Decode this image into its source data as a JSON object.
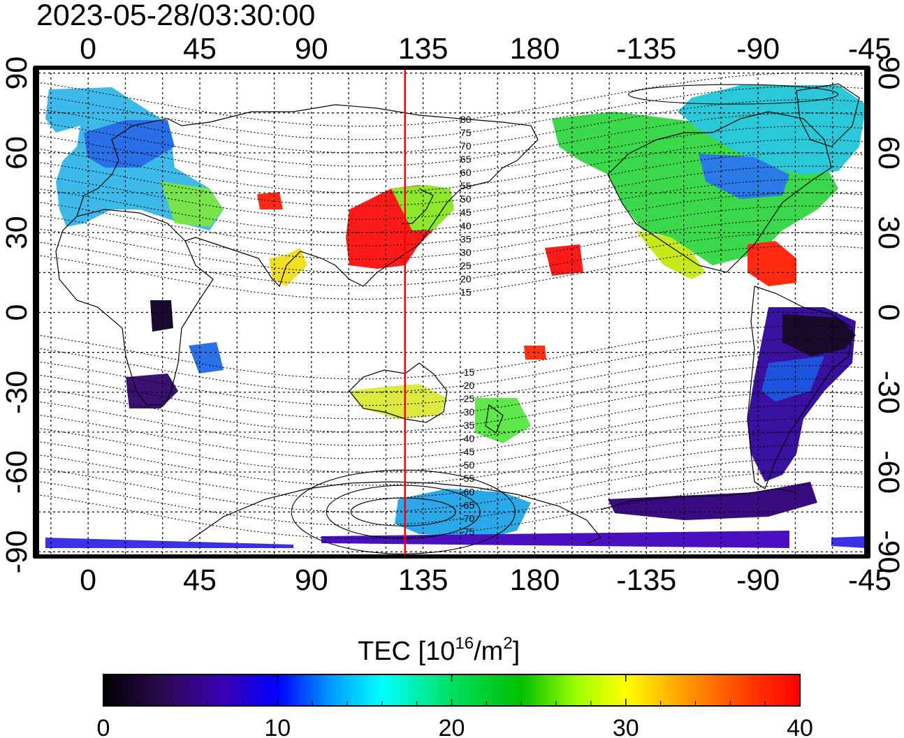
{
  "timestamp": "2023-05-28/03:30:00",
  "map": {
    "lon_top_labels": [
      "0",
      "45",
      "90",
      "135",
      "180",
      "-135",
      "-90",
      "-45"
    ],
    "lon_bottom_labels": [
      "0",
      "45",
      "90",
      "135",
      "180",
      "-135",
      "-90",
      "-45"
    ],
    "lat_left_labels": [
      "90",
      "60",
      "30",
      "0",
      "-30",
      "-60",
      "-90"
    ],
    "lat_right_labels": [
      "90",
      "60",
      "30",
      "0",
      "-30",
      "-60",
      "-90"
    ],
    "lon_range": [
      -22,
      315
    ],
    "lat_range": [
      -92,
      92
    ],
    "reference_meridian_lon": 127.7,
    "reference_meridian_color": "#ff0000"
  },
  "geomag_contour_labels": [
    "80",
    "75",
    "70",
    "65",
    "60",
    "55",
    "50",
    "45",
    "40",
    "35",
    "30",
    "25",
    "20",
    "15",
    "-15",
    "-20",
    "-25",
    "-30",
    "-35",
    "-40",
    "-45",
    "-50",
    "-55",
    "-60",
    "-65",
    "-70",
    "-75"
  ],
  "colorbar": {
    "title_main": "TEC  [10",
    "title_exp": "16",
    "title_unit": "/m",
    "title_unit_exp": "2",
    "title_close": "]",
    "ticks": [
      "0",
      "10",
      "20",
      "30",
      "40"
    ],
    "min": 0,
    "max": 40,
    "stops": [
      "#000000",
      "#2a0a4a",
      "#3a00b0",
      "#0000ff",
      "#00a0ff",
      "#00ffff",
      "#00e060",
      "#00c000",
      "#a0ff00",
      "#ffff00",
      "#ffa000",
      "#ff4000",
      "#ff0000"
    ]
  }
}
